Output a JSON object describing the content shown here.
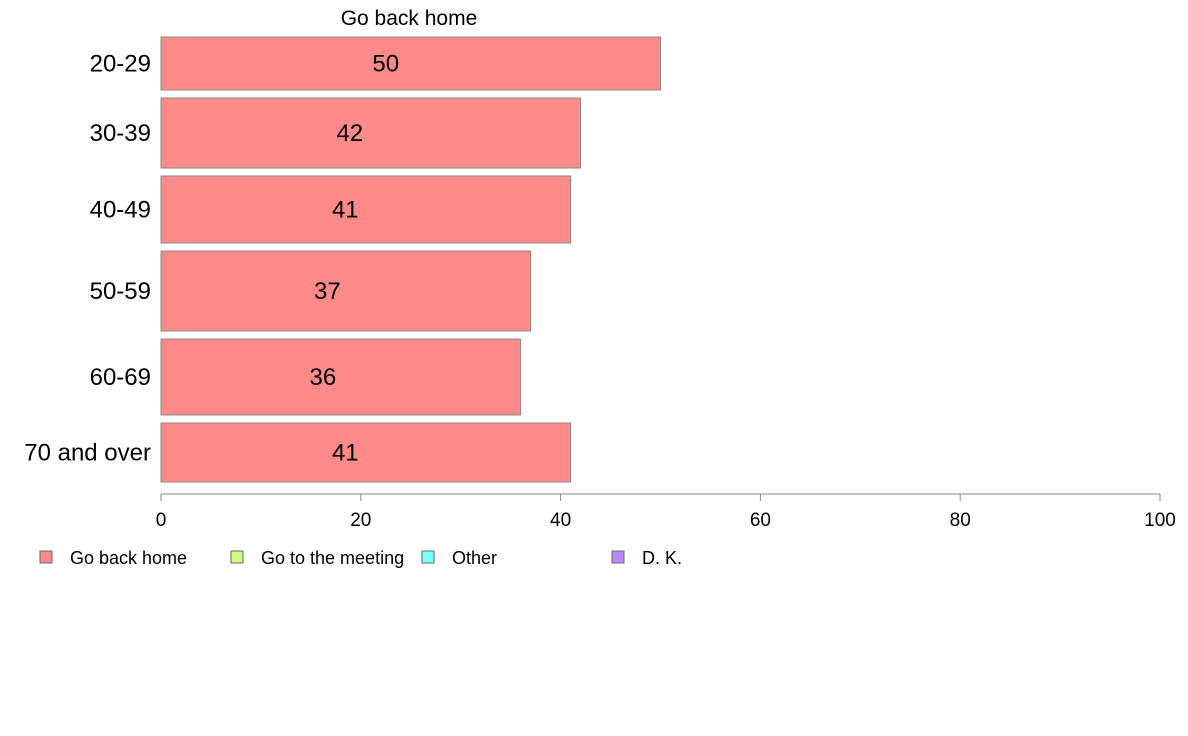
{
  "chart_data": {
    "type": "bar",
    "orientation": "horizontal",
    "title": "Go back home",
    "categories": [
      "20-29",
      "30-39",
      "40-49",
      "50-59",
      "60-69",
      "70 and over"
    ],
    "series": [
      {
        "name": "Go back home",
        "values": [
          50,
          42,
          41,
          37,
          36,
          41
        ],
        "color": "#ff8a8a"
      }
    ],
    "data_labels": [
      "50",
      "42",
      "41",
      "37",
      "36",
      "41"
    ],
    "xlim": [
      0,
      100
    ],
    "xticks": [
      0,
      20,
      40,
      60,
      80,
      100
    ],
    "grid": false,
    "legend": {
      "position": "bottom",
      "items": [
        {
          "label": "Go back home",
          "color": "#ff8a8a"
        },
        {
          "label": "Go to the meeting",
          "color": "#ccff80"
        },
        {
          "label": "Other",
          "color": "#80ffff"
        },
        {
          "label": "D. K.",
          "color": "#bb88ff"
        }
      ]
    }
  }
}
